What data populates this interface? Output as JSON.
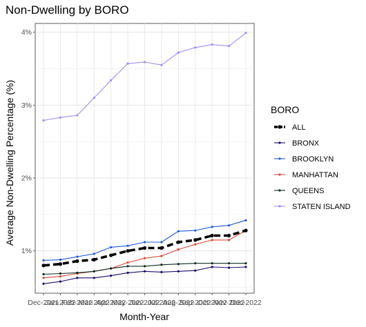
{
  "chart_data": {
    "type": "line",
    "title": "Non-Dwelling by BORO",
    "xlabel": "Month-Year",
    "ylabel": "Average Non-Dwelling Percentage (%)",
    "x": [
      "Dec-2021",
      "Jan-2022",
      "Feb-2022",
      "Mar-2022",
      "Apr-2022",
      "May-2022",
      "Jun-2022",
      "Jul-2022",
      "Aug-2022",
      "Sep-2022",
      "Oct-2022",
      "Nov-2022",
      "Dec-2022"
    ],
    "x_tick_labels": [
      "Dec-2021",
      "Feb-2022",
      "Apr-2022",
      "Jun-2022",
      "Aug-2022",
      "Oct-2022",
      "Dec-2022"
    ],
    "x_tick_labels_overlay": [
      "Jan-2022",
      "Mar-2022",
      "May-2022",
      "Jul-2022",
      "Sep-2022",
      "Nov-2022"
    ],
    "y_ticks": [
      1,
      2,
      3,
      4
    ],
    "y_tick_labels": [
      "1%",
      "2%",
      "3%",
      "4%"
    ],
    "ylim": [
      0.42,
      4.12
    ],
    "grid": true,
    "legend": {
      "title": "BORO",
      "position": "right"
    },
    "series": [
      {
        "name": "ALL",
        "color": "#000000",
        "style": "dashed-thick",
        "values": [
          0.8,
          0.82,
          0.86,
          0.88,
          0.94,
          1.0,
          1.04,
          1.04,
          1.12,
          1.15,
          1.21,
          1.21,
          1.28
        ]
      },
      {
        "name": "BRONX",
        "color": "#1a0a6b",
        "style": "solid",
        "values": [
          0.55,
          0.58,
          0.63,
          0.63,
          0.66,
          0.7,
          0.72,
          0.71,
          0.72,
          0.73,
          0.78,
          0.77,
          0.78
        ]
      },
      {
        "name": "BROOKLYN",
        "color": "#1e5bd6",
        "style": "solid",
        "values": [
          0.87,
          0.88,
          0.92,
          0.96,
          1.05,
          1.07,
          1.12,
          1.12,
          1.27,
          1.28,
          1.33,
          1.35,
          1.42
        ]
      },
      {
        "name": "MANHATTAN",
        "color": "#d64a3a",
        "style": "solid",
        "values": [
          0.63,
          0.65,
          0.69,
          0.72,
          0.76,
          0.84,
          0.9,
          0.93,
          1.02,
          1.09,
          1.15,
          1.15,
          1.28
        ]
      },
      {
        "name": "QUEENS",
        "color": "#0a2a1e",
        "style": "solid",
        "values": [
          0.68,
          0.69,
          0.7,
          0.72,
          0.76,
          0.79,
          0.79,
          0.81,
          0.82,
          0.83,
          0.83,
          0.83,
          0.83
        ]
      },
      {
        "name": "STATEN ISLAND",
        "color": "#9b8ff5",
        "style": "solid",
        "values": [
          2.79,
          2.83,
          2.86,
          3.1,
          3.34,
          3.57,
          3.59,
          3.55,
          3.72,
          3.79,
          3.83,
          3.81,
          3.99
        ]
      }
    ]
  }
}
